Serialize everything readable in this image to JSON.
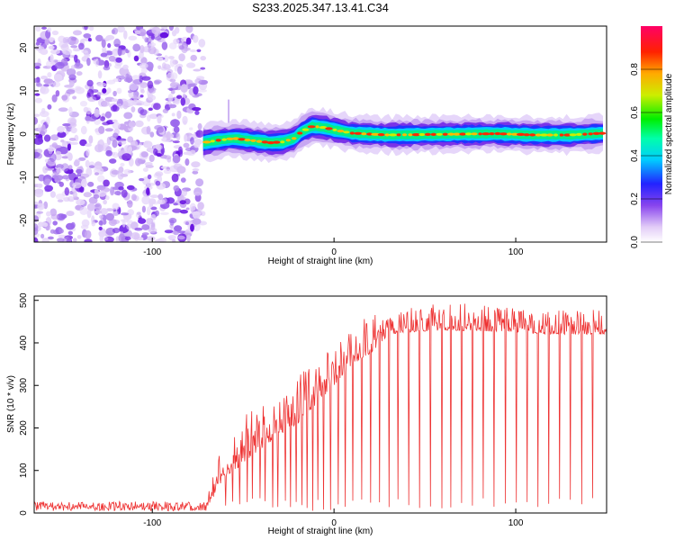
{
  "title": "S233.2025.347.13.41.C34",
  "chart_data": [
    {
      "type": "heatmap",
      "name": "spectrogram",
      "xlabel": "Height of straight line (km)",
      "ylabel": "Frequency (Hz)",
      "xlim": [
        -165,
        150
      ],
      "ylim": [
        -25,
        25
      ],
      "xticks": [
        -100,
        0,
        100
      ],
      "yticks": [
        -20,
        -10,
        0,
        10,
        20
      ],
      "noise_region_x": [
        -165,
        -72
      ],
      "signal_track": {
        "x": [
          -72,
          -65,
          -55,
          -45,
          -35,
          -28,
          -22,
          -18,
          -12,
          -5,
          0,
          10,
          30,
          50,
          70,
          90,
          110,
          130,
          148
        ],
        "freq": [
          -2,
          -1.5,
          -1,
          -1.5,
          -2,
          -1.8,
          -1,
          0.5,
          1.8,
          1.5,
          1,
          0.2,
          -0.2,
          -0.1,
          0,
          0.1,
          -0.2,
          -0.2,
          0.2
        ]
      },
      "colorbar": {
        "label": "Normalized spectral amplitude",
        "range": [
          0,
          1
        ],
        "ticks": [
          0.0,
          0.2,
          0.4,
          0.6,
          0.8
        ],
        "tick_labels": [
          "0.0",
          "0.2",
          "0.4",
          "0.6",
          "0.8"
        ]
      }
    },
    {
      "type": "line",
      "name": "snr",
      "xlabel": "Height of straight line (km)",
      "ylabel": "SNR (10 * v/v)",
      "xlim": [
        -165,
        150
      ],
      "ylim": [
        0,
        510
      ],
      "xticks": [
        -100,
        0,
        100
      ],
      "yticks": [
        0,
        100,
        200,
        300,
        400,
        500
      ],
      "color": "#ee3333",
      "envelope": {
        "x": [
          -165,
          -70,
          -65,
          -60,
          -50,
          -40,
          -30,
          -20,
          -10,
          0,
          10,
          20,
          30,
          40,
          60,
          80,
          100,
          120,
          150
        ],
        "baseline": [
          15,
          15,
          40,
          85,
          115,
          150,
          185,
          210,
          255,
          300,
          350,
          375,
          420,
          425,
          430,
          428,
          425,
          420,
          420
        ],
        "peak": [
          30,
          30,
          120,
          180,
          240,
          250,
          270,
          330,
          350,
          400,
          440,
          470,
          480,
          490,
          495,
          495,
          480,
          475,
          480
        ]
      },
      "dropouts_x": [
        -60,
        -56,
        -52,
        -48,
        -45,
        -41,
        -38,
        -34,
        -31,
        -27,
        -24,
        -21,
        -18,
        -15,
        -12,
        -9,
        -6,
        -2,
        2,
        6,
        10,
        15,
        20,
        25,
        30,
        35,
        41,
        47,
        53,
        59,
        64,
        70,
        76,
        82,
        88,
        94,
        100,
        106,
        112,
        118,
        124,
        130,
        136,
        142
      ]
    }
  ],
  "colors": {
    "axis": "#000000",
    "line": "#ee3333"
  }
}
